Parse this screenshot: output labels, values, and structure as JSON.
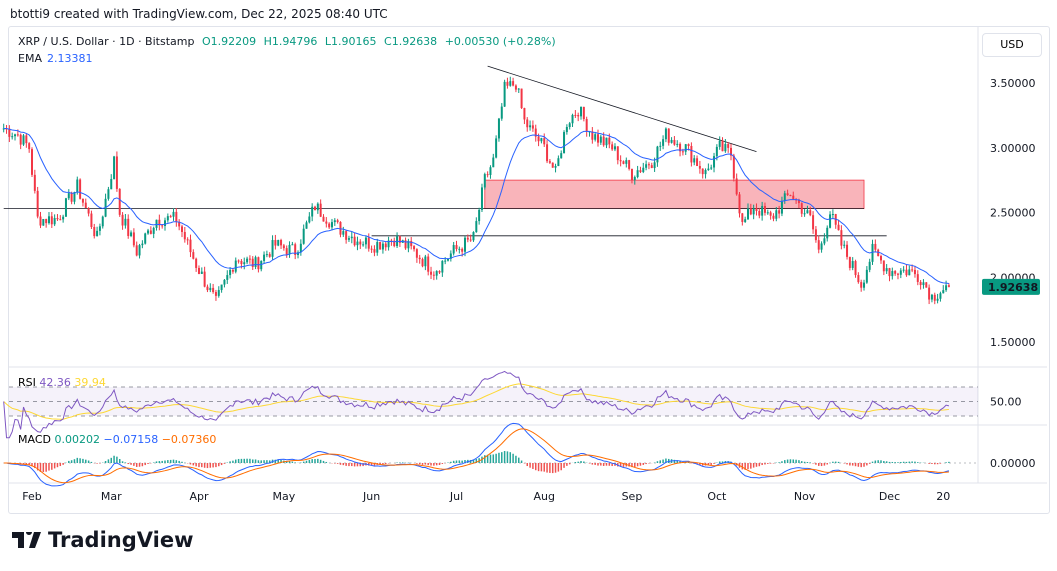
{
  "header": "btotti9 created with TradingView.com, Dec 22, 2025 08:40 UTC",
  "legend": {
    "symbol": "XRP / U.S. Dollar · 1D · Bitstamp",
    "open": "O1.92209",
    "high": "H1.94796",
    "low": "L1.90165",
    "close": "C1.92638",
    "change": "+0.00530 (+0.28%)"
  },
  "ema": {
    "label": "EMA",
    "value": "2.13381"
  },
  "currency": "USD",
  "last_price": "1.92638",
  "rsi": {
    "label": "RSI",
    "value": "42.36",
    "ma": "39.94",
    "axis_label": "50.00"
  },
  "macd": {
    "label": "MACD",
    "hist": "0.00202",
    "macd": "−0.07158",
    "signal": "−0.07360",
    "axis_label": "0.00000"
  },
  "logo": "TradingView",
  "colors": {
    "up": "#089981",
    "down": "#f23645",
    "ema": "#2962ff",
    "rsi": "#7e57c2",
    "rsi_ma": "#fdd835",
    "macd": "#2962ff",
    "signal": "#ff6d00",
    "zone": "#f7a1a9"
  },
  "chart_data": {
    "type": "candlestick",
    "ylim": [
      1.3,
      3.75
    ],
    "yticks": [
      "3.50000",
      "3.00000",
      "2.50000",
      "2.00000",
      "1.50000"
    ],
    "xticks": [
      "Feb",
      "Mar",
      "Apr",
      "May",
      "Jun",
      "Jul",
      "Aug",
      "Sep",
      "Oct",
      "Nov",
      "Dec",
      "20"
    ],
    "approx_closes": [
      [
        "2025-01-22",
        3.15
      ],
      [
        "2025-01-27",
        3.1
      ],
      [
        "2025-01-31",
        3.0
      ],
      [
        "2025-02-03",
        2.45
      ],
      [
        "2025-02-10",
        2.45
      ],
      [
        "2025-02-17",
        2.7
      ],
      [
        "2025-02-24",
        2.3
      ],
      [
        "2025-03-02",
        2.9
      ],
      [
        "2025-03-04",
        2.5
      ],
      [
        "2025-03-10",
        2.2
      ],
      [
        "2025-03-17",
        2.45
      ],
      [
        "2025-03-24",
        2.45
      ],
      [
        "2025-03-31",
        2.1
      ],
      [
        "2025-04-07",
        1.8
      ],
      [
        "2025-04-14",
        2.15
      ],
      [
        "2025-04-21",
        2.1
      ],
      [
        "2025-04-28",
        2.25
      ],
      [
        "2025-05-05",
        2.2
      ],
      [
        "2025-05-12",
        2.55
      ],
      [
        "2025-05-19",
        2.4
      ],
      [
        "2025-05-26",
        2.3
      ],
      [
        "2025-06-02",
        2.25
      ],
      [
        "2025-06-09",
        2.3
      ],
      [
        "2025-06-16",
        2.2
      ],
      [
        "2025-06-23",
        2.05
      ],
      [
        "2025-06-30",
        2.2
      ],
      [
        "2025-07-07",
        2.3
      ],
      [
        "2025-07-11",
        2.75
      ],
      [
        "2025-07-14",
        2.9
      ],
      [
        "2025-07-18",
        3.45
      ],
      [
        "2025-07-22",
        3.5
      ],
      [
        "2025-07-25",
        3.2
      ],
      [
        "2025-08-01",
        3.0
      ],
      [
        "2025-08-05",
        2.8
      ],
      [
        "2025-08-09",
        3.2
      ],
      [
        "2025-08-13",
        3.3
      ],
      [
        "2025-08-18",
        3.1
      ],
      [
        "2025-08-25",
        3.0
      ],
      [
        "2025-09-01",
        2.8
      ],
      [
        "2025-09-08",
        2.9
      ],
      [
        "2025-09-13",
        3.1
      ],
      [
        "2025-09-20",
        3.0
      ],
      [
        "2025-09-27",
        2.8
      ],
      [
        "2025-10-02",
        3.0
      ],
      [
        "2025-10-06",
        2.95
      ],
      [
        "2025-10-10",
        2.4
      ],
      [
        "2025-10-14",
        2.55
      ],
      [
        "2025-10-20",
        2.45
      ],
      [
        "2025-10-27",
        2.65
      ],
      [
        "2025-11-03",
        2.45
      ],
      [
        "2025-11-06",
        2.2
      ],
      [
        "2025-11-10",
        2.5
      ],
      [
        "2025-11-14",
        2.25
      ],
      [
        "2025-11-21",
        1.95
      ],
      [
        "2025-11-25",
        2.2
      ],
      [
        "2025-12-01",
        2.05
      ],
      [
        "2025-12-08",
        2.05
      ],
      [
        "2025-12-12",
        2.0
      ],
      [
        "2025-12-16",
        1.85
      ],
      [
        "2025-12-19",
        1.9
      ],
      [
        "2025-12-22",
        1.926
      ]
    ],
    "annotations": {
      "trendline": [
        [
          "2025-07-12",
          3.63
        ],
        [
          "2025-10-15",
          2.97
        ]
      ],
      "zone": {
        "from": "2025-07-11",
        "to": "2025-11-22",
        "low": 2.53,
        "high": 2.75
      },
      "hlines": [
        {
          "from": "2025-01-22",
          "to": "2025-11-22",
          "price": 2.53
        },
        {
          "from": "2025-06-01",
          "to": "2025-11-30",
          "price": 2.32
        }
      ]
    }
  }
}
